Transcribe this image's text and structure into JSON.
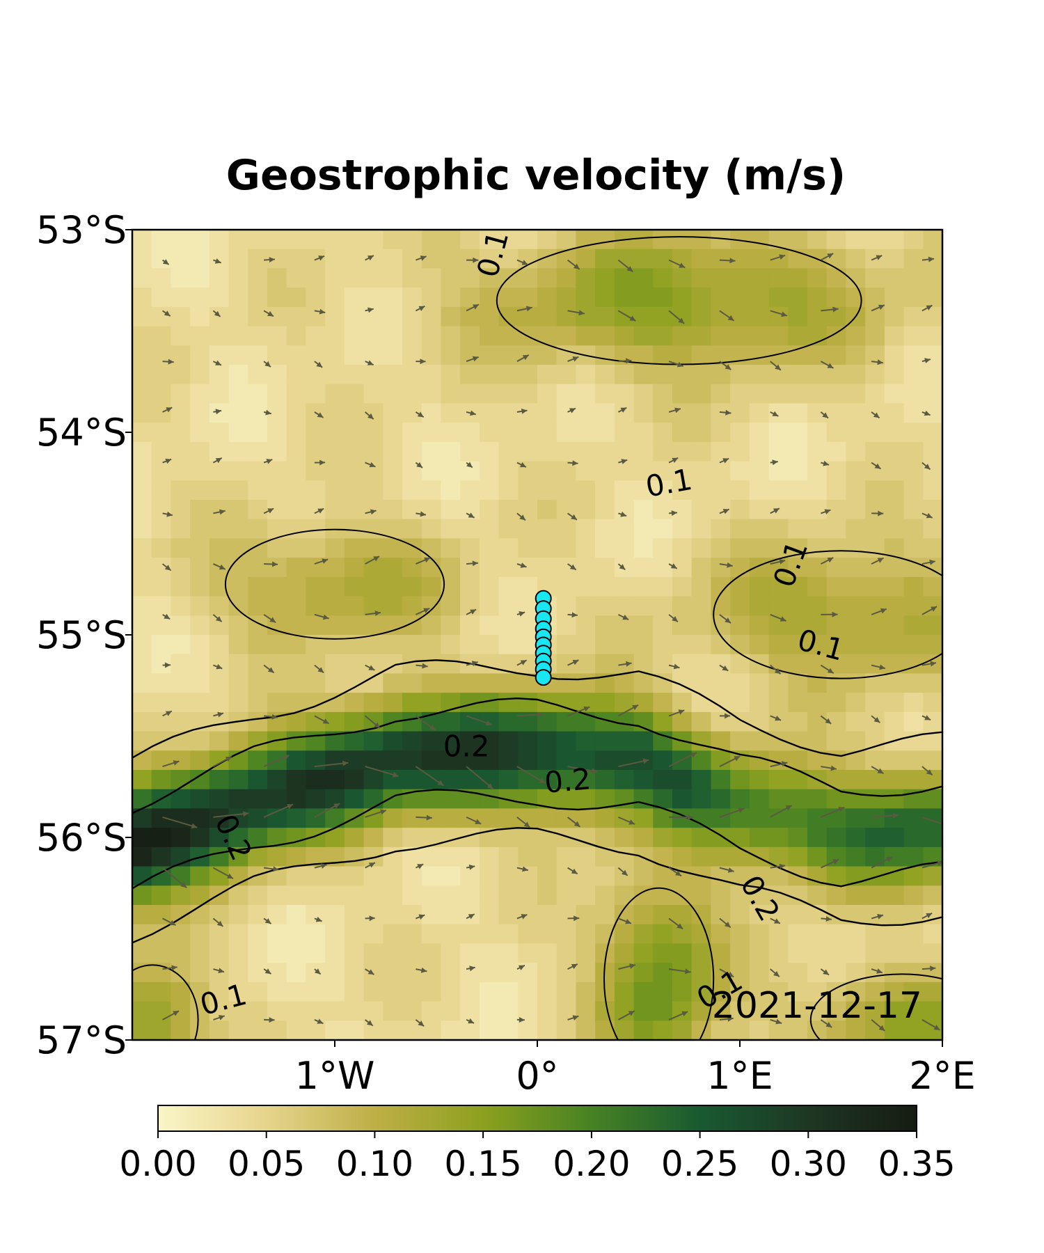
{
  "chart_data": {
    "type": "heatmap",
    "title": "Geostrophic velocity (m/s)",
    "date": "2021-12-17",
    "lon_range": [
      -2,
      2
    ],
    "lat_range": [
      -57,
      -53
    ],
    "x_ticks": [
      {
        "value": -1,
        "label": "1°W"
      },
      {
        "value": 0,
        "label": "0°"
      },
      {
        "value": 1,
        "label": "1°E"
      },
      {
        "value": 2,
        "label": "2°E"
      }
    ],
    "y_ticks": [
      {
        "value": -53,
        "label": "53°S"
      },
      {
        "value": -54,
        "label": "54°S"
      },
      {
        "value": -55,
        "label": "55°S"
      },
      {
        "value": -56,
        "label": "56°S"
      },
      {
        "value": -57,
        "label": "57°S"
      }
    ],
    "colorbar": {
      "range": [
        0,
        0.35
      ],
      "ticks": [
        {
          "value": 0.0,
          "label": "0.00"
        },
        {
          "value": 0.05,
          "label": "0.05"
        },
        {
          "value": 0.1,
          "label": "0.10"
        },
        {
          "value": 0.15,
          "label": "0.15"
        },
        {
          "value": 0.2,
          "label": "0.20"
        },
        {
          "value": 0.25,
          "label": "0.25"
        },
        {
          "value": 0.3,
          "label": "0.30"
        },
        {
          "value": 0.35,
          "label": "0.35"
        }
      ]
    },
    "contour_labels": [
      {
        "text": "0.1",
        "lon": -0.22,
        "lat": -53.12,
        "angle": -75
      },
      {
        "text": "0.1",
        "lon": 0.65,
        "lat": -54.25,
        "angle": -10
      },
      {
        "text": "0.1",
        "lon": 1.25,
        "lat": -54.65,
        "angle": -70
      },
      {
        "text": "0.1",
        "lon": 1.4,
        "lat": -55.05,
        "angle": 15
      },
      {
        "text": "0.2",
        "lon": -0.35,
        "lat": -55.55,
        "angle": 0
      },
      {
        "text": "0.2",
        "lon": 0.15,
        "lat": -55.72,
        "angle": -5
      },
      {
        "text": "0.2",
        "lon": -1.5,
        "lat": -56.0,
        "angle": 65
      },
      {
        "text": "0.2",
        "lon": 1.1,
        "lat": -56.3,
        "angle": 60
      },
      {
        "text": "0.1",
        "lon": 0.9,
        "lat": -56.75,
        "angle": -30
      },
      {
        "text": "0.1",
        "lon": -1.55,
        "lat": -56.8,
        "angle": -15
      }
    ],
    "station_points": {
      "color": "#18e6f0",
      "points": [
        {
          "lon": 0.03,
          "lat": -54.82
        },
        {
          "lon": 0.03,
          "lat": -54.87
        },
        {
          "lon": 0.03,
          "lat": -54.92
        },
        {
          "lon": 0.03,
          "lat": -54.97
        },
        {
          "lon": 0.03,
          "lat": -55.01
        },
        {
          "lon": 0.03,
          "lat": -55.05
        },
        {
          "lon": 0.03,
          "lat": -55.09
        },
        {
          "lon": 0.03,
          "lat": -55.13
        },
        {
          "lon": 0.03,
          "lat": -55.17
        },
        {
          "lon": 0.03,
          "lat": -55.21
        }
      ]
    },
    "jet": [
      {
        "lon": -2.0,
        "lat": -56.05,
        "speed": 0.31
      },
      {
        "lon": -1.4,
        "lat": -55.82,
        "speed": 0.27
      },
      {
        "lon": -0.7,
        "lat": -55.6,
        "speed": 0.26
      },
      {
        "lon": 0.0,
        "lat": -55.58,
        "speed": 0.25
      },
      {
        "lon": 0.5,
        "lat": -55.62,
        "speed": 0.23
      },
      {
        "lon": 1.0,
        "lat": -55.85,
        "speed": 0.17
      },
      {
        "lon": 1.5,
        "lat": -55.98,
        "speed": 0.18
      },
      {
        "lon": 2.0,
        "lat": -55.95,
        "speed": 0.2
      }
    ],
    "secondary_features": [
      {
        "lon": 0.7,
        "lat": -53.35,
        "speed": 0.11,
        "r_lon": 1.0,
        "r_lat": 0.35
      },
      {
        "lon": 1.8,
        "lat": -56.9,
        "speed": 0.1,
        "r_lon": 0.5,
        "r_lat": 0.25
      },
      {
        "lon": 1.5,
        "lat": -54.9,
        "speed": 0.09,
        "r_lon": 0.7,
        "r_lat": 0.35
      },
      {
        "lon": -1.0,
        "lat": -54.75,
        "speed": 0.08,
        "r_lon": 0.6,
        "r_lat": 0.3
      },
      {
        "lon": -1.9,
        "lat": -56.9,
        "speed": 0.12,
        "r_lon": 0.25,
        "r_lat": 0.3
      },
      {
        "lon": 0.6,
        "lat": -56.7,
        "speed": 0.14,
        "r_lon": 0.3,
        "r_lat": 0.5
      }
    ]
  }
}
